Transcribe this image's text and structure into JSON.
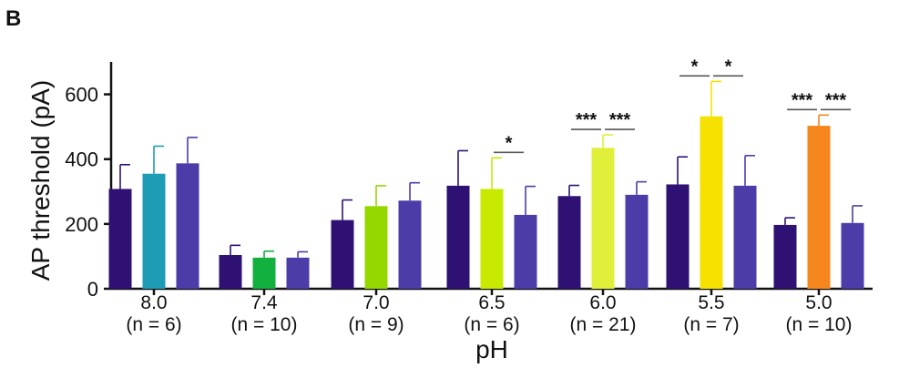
{
  "panel_label": "B",
  "chart_data": {
    "type": "bar",
    "title": "",
    "xlabel": "pH",
    "ylabel": "AP threshold (pA)",
    "ylim": [
      0,
      700
    ],
    "yticks": [
      0,
      200,
      400,
      600
    ],
    "grid": false,
    "groups": [
      {
        "label": "8.0",
        "n_label": "(n = 6)",
        "bars": [
          {
            "value": 308,
            "error": 75,
            "color": "#2e1173"
          },
          {
            "value": 355,
            "error": 85,
            "color": "#1e9bb5"
          },
          {
            "value": 387,
            "error": 80,
            "color": "#4b3ca8"
          }
        ],
        "significance": []
      },
      {
        "label": "7.4",
        "n_label": "(n = 10)",
        "bars": [
          {
            "value": 104,
            "error": 30,
            "color": "#2e1173"
          },
          {
            "value": 96,
            "error": 20,
            "color": "#12b03e"
          },
          {
            "value": 96,
            "error": 18,
            "color": "#4b3ca8"
          }
        ],
        "significance": []
      },
      {
        "label": "7.0",
        "n_label": "(n = 9)",
        "bars": [
          {
            "value": 212,
            "error": 62,
            "color": "#2e1173"
          },
          {
            "value": 255,
            "error": 63,
            "color": "#94d800"
          },
          {
            "value": 272,
            "error": 55,
            "color": "#4b3ca8"
          }
        ],
        "significance": []
      },
      {
        "label": "6.5",
        "n_label": "(n = 6)",
        "bars": [
          {
            "value": 318,
            "error": 108,
            "color": "#2e1173"
          },
          {
            "value": 308,
            "error": 96,
            "color": "#c8ea00"
          },
          {
            "value": 228,
            "error": 88,
            "color": "#4b3ca8"
          }
        ],
        "significance": [
          {
            "from": 1,
            "to": 2,
            "label": "*"
          }
        ]
      },
      {
        "label": "6.0",
        "n_label": "(n = 21)",
        "bars": [
          {
            "value": 286,
            "error": 33,
            "color": "#2e1173"
          },
          {
            "value": 435,
            "error": 40,
            "color": "#e0f03a"
          },
          {
            "value": 290,
            "error": 40,
            "color": "#4b3ca8"
          }
        ],
        "significance": [
          {
            "from": 0,
            "to": 1,
            "label": "***"
          },
          {
            "from": 1,
            "to": 2,
            "label": "***"
          }
        ]
      },
      {
        "label": "5.5",
        "n_label": "(n = 7)",
        "bars": [
          {
            "value": 322,
            "error": 85,
            "color": "#2e1173"
          },
          {
            "value": 532,
            "error": 108,
            "color": "#f5e000"
          },
          {
            "value": 318,
            "error": 93,
            "color": "#4b3ca8"
          }
        ],
        "significance": [
          {
            "from": 0,
            "to": 1,
            "label": "*"
          },
          {
            "from": 1,
            "to": 2,
            "label": "*"
          }
        ]
      },
      {
        "label": "5.0",
        "n_label": "(n = 10)",
        "bars": [
          {
            "value": 197,
            "error": 22,
            "color": "#2e1173"
          },
          {
            "value": 503,
            "error": 33,
            "color": "#f5861e"
          },
          {
            "value": 203,
            "error": 53,
            "color": "#4b3ca8"
          }
        ],
        "significance": [
          {
            "from": 0,
            "to": 1,
            "label": "***"
          },
          {
            "from": 1,
            "to": 2,
            "label": "***"
          }
        ]
      }
    ]
  }
}
